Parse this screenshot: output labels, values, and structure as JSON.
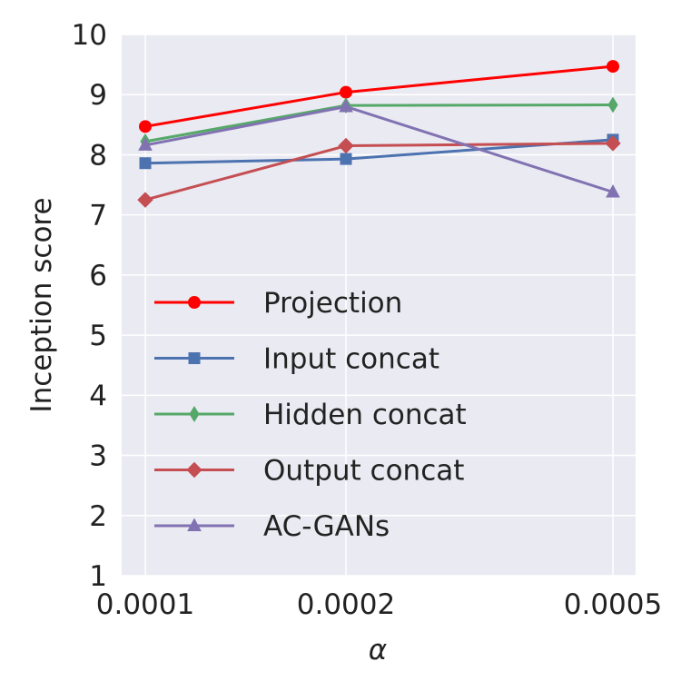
{
  "chart_data": {
    "type": "line",
    "title": "",
    "xlabel": "α",
    "ylabel": "Inception score",
    "categories": [
      "0.0001",
      "0.0002",
      "0.0005"
    ],
    "ylim": [
      1,
      10
    ],
    "yticks": [
      "1",
      "2",
      "3",
      "4",
      "5",
      "6",
      "7",
      "8",
      "9",
      "10"
    ],
    "grid": true,
    "legend_position": "lower-left",
    "series": [
      {
        "name": "Projection",
        "values": [
          8.47,
          9.04,
          9.47
        ],
        "color": "#ff0000",
        "marker": "circle"
      },
      {
        "name": "Input concat",
        "values": [
          7.86,
          7.93,
          8.25
        ],
        "color": "#4c72b0",
        "marker": "square"
      },
      {
        "name": "Hidden concat",
        "values": [
          8.22,
          8.82,
          8.83
        ],
        "color": "#55a868",
        "marker": "thin-diamond"
      },
      {
        "name": "Output concat",
        "values": [
          7.25,
          8.15,
          8.19
        ],
        "color": "#c44e52",
        "marker": "diamond"
      },
      {
        "name": "AC-GANs",
        "values": [
          8.16,
          8.8,
          7.38
        ],
        "color": "#8172b2",
        "marker": "triangle"
      }
    ],
    "colors": {
      "background": "#eaeaf2",
      "grid": "#ffffff",
      "text": "#222222"
    }
  }
}
